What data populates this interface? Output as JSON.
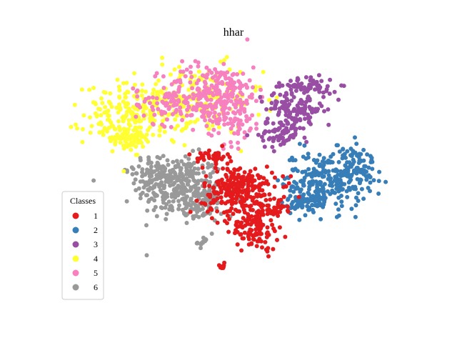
{
  "chart_data": {
    "type": "scatter",
    "title": "hhar",
    "xlabel": "",
    "ylabel": "",
    "axes_visible": false,
    "grid": false,
    "legend": {
      "title": "Classes",
      "placement": "lower-left",
      "entries": [
        "1",
        "2",
        "3",
        "4",
        "5",
        "6"
      ]
    },
    "xlim": [
      0,
      100
    ],
    "ylim": [
      0,
      100
    ],
    "series": [
      {
        "name": "1",
        "color": "#e41a1c",
        "clusters": [
          {
            "cx": 51,
            "cy": 43,
            "sx": 5.5,
            "sy": 5.0,
            "n": 260
          },
          {
            "cx": 56,
            "cy": 28,
            "sx": 3.5,
            "sy": 4.5,
            "n": 120
          },
          {
            "cx": 43,
            "cy": 57,
            "sx": 2.2,
            "sy": 1.4,
            "n": 40
          },
          {
            "cx": 62,
            "cy": 36,
            "sx": 2.0,
            "sy": 2.0,
            "n": 30
          },
          {
            "cx": 46,
            "cy": 12,
            "sx": 0.8,
            "sy": 0.6,
            "n": 10
          }
        ]
      },
      {
        "name": "2",
        "color": "#377eb8",
        "clusters": [
          {
            "cx": 77,
            "cy": 47,
            "sx": 6.5,
            "sy": 6.0,
            "n": 240
          },
          {
            "cx": 86,
            "cy": 53,
            "sx": 3.5,
            "sy": 4.0,
            "n": 80
          },
          {
            "cx": 72,
            "cy": 38,
            "sx": 3.0,
            "sy": 2.5,
            "n": 60
          }
        ]
      },
      {
        "name": "3",
        "color": "#984ea3",
        "clusters": [
          {
            "cx": 68,
            "cy": 76,
            "sx": 4.5,
            "sy": 5.0,
            "n": 150
          },
          {
            "cx": 63,
            "cy": 66,
            "sx": 3.0,
            "sy": 3.0,
            "n": 60
          },
          {
            "cx": 73,
            "cy": 85,
            "sx": 4.0,
            "sy": 1.8,
            "n": 50
          }
        ]
      },
      {
        "name": "4",
        "color": "#ffff33",
        "clusters": [
          {
            "cx": 20,
            "cy": 74,
            "sx": 8.0,
            "sy": 6.0,
            "n": 220
          },
          {
            "cx": 38,
            "cy": 80,
            "sx": 10.0,
            "sy": 7.0,
            "n": 160
          },
          {
            "cx": 16,
            "cy": 64,
            "sx": 4.0,
            "sy": 2.5,
            "n": 60
          }
        ]
      },
      {
        "name": "5",
        "color": "#f781bf",
        "clusters": [
          {
            "cx": 42,
            "cy": 82,
            "sx": 7.0,
            "sy": 6.5,
            "n": 200
          },
          {
            "cx": 49,
            "cy": 77,
            "sx": 4.5,
            "sy": 8.0,
            "n": 120
          },
          {
            "cx": 29,
            "cy": 78,
            "sx": 5.0,
            "sy": 4.0,
            "n": 60
          }
        ]
      },
      {
        "name": "6",
        "color": "#999999",
        "clusters": [
          {
            "cx": 33,
            "cy": 44,
            "sx": 6.5,
            "sy": 6.5,
            "n": 280
          },
          {
            "cx": 27,
            "cy": 51,
            "sx": 4.0,
            "sy": 3.0,
            "n": 80
          },
          {
            "cx": 40,
            "cy": 37,
            "sx": 3.0,
            "sy": 4.0,
            "n": 60
          },
          {
            "cx": 40,
            "cy": 22,
            "sx": 0.8,
            "sy": 1.0,
            "n": 12
          }
        ]
      }
    ]
  }
}
